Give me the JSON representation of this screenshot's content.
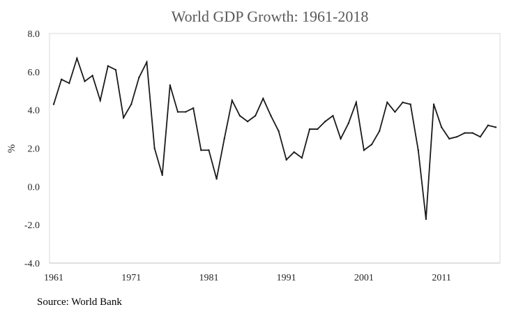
{
  "chart_data": {
    "type": "line",
    "title": "World GDP Growth: 1961-2018",
    "xlabel": "",
    "ylabel": "%",
    "ylim": [
      -4.0,
      8.0
    ],
    "xlim": [
      1961,
      2018
    ],
    "y_ticks": [
      "-4.0",
      "-2.0",
      "0.0",
      "2.0",
      "4.0",
      "6.0",
      "8.0"
    ],
    "x_ticks": [
      "1961",
      "1971",
      "1981",
      "1991",
      "2001",
      "2011"
    ],
    "grid": false,
    "legend": "none",
    "colors": {
      "line": "#1a1a1a",
      "title": "#595959",
      "border": "#d9d9d9"
    },
    "series": [
      {
        "x": [
          1961,
          1962,
          1963,
          1964,
          1965,
          1966,
          1967,
          1968,
          1969,
          1970,
          1971,
          1972,
          1973,
          1974,
          1975,
          1976,
          1977,
          1978,
          1979,
          1980,
          1981,
          1982,
          1983,
          1984,
          1985,
          1986,
          1987,
          1988,
          1989,
          1990,
          1991,
          1992,
          1993,
          1994,
          1995,
          1996,
          1997,
          1998,
          1999,
          2000,
          2001,
          2002,
          2003,
          2004,
          2005,
          2006,
          2007,
          2008,
          2009,
          2010,
          2011,
          2012,
          2013,
          2014,
          2015,
          2016,
          2017,
          2018
        ],
        "values": [
          4.3,
          5.6,
          5.4,
          6.7,
          5.5,
          5.8,
          4.5,
          6.3,
          6.1,
          3.6,
          4.3,
          5.7,
          6.5,
          2.0,
          0.6,
          5.3,
          3.9,
          3.9,
          4.1,
          1.9,
          1.9,
          0.4,
          2.5,
          4.5,
          3.7,
          3.4,
          3.7,
          4.6,
          3.7,
          2.9,
          1.4,
          1.8,
          1.5,
          3.0,
          3.0,
          3.4,
          3.7,
          2.5,
          3.3,
          4.4,
          1.9,
          2.2,
          2.9,
          4.4,
          3.9,
          4.4,
          4.3,
          1.9,
          -1.7,
          4.3,
          3.1,
          2.5,
          2.6,
          2.8,
          2.8,
          2.6,
          3.2,
          3.1
        ]
      }
    ]
  },
  "source": "Source: World Bank"
}
